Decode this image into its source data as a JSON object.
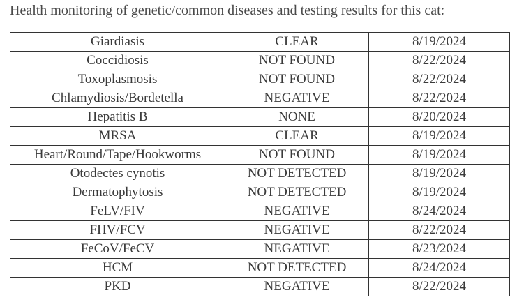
{
  "heading": "Health monitoring of genetic/common diseases and testing results for this cat:",
  "table": {
    "rows": [
      [
        "Giardiasis",
        "CLEAR",
        "8/19/2024"
      ],
      [
        "Coccidiosis",
        "NOT FOUND",
        "8/22/2024"
      ],
      [
        "Toxoplasmosis",
        "NOT FOUND",
        "8/22/2024"
      ],
      [
        "Chlamydiosis/Bordetella",
        "NEGATIVE",
        "8/22/2024"
      ],
      [
        "Hepatitis B",
        "NONE",
        "8/20/2024"
      ],
      [
        "MRSA",
        "CLEAR",
        "8/19/2024"
      ],
      [
        "Heart/Round/Tape/Hookworms",
        "NOT FOUND",
        "8/19/2024"
      ],
      [
        "Otodectes cynotis",
        "NOT DETECTED",
        "8/19/2024"
      ],
      [
        "Dermatophytosis",
        "NOT DETECTED",
        "8/19/2024"
      ],
      [
        "FeLV/FIV",
        "NEGATIVE",
        "8/24/2024"
      ],
      [
        "FHV/FCV",
        "NEGATIVE",
        "8/22/2024"
      ],
      [
        "FeCoV/FeCV",
        "NEGATIVE",
        "8/23/2024"
      ],
      [
        "HCM",
        "NOT DETECTED",
        "8/24/2024"
      ],
      [
        "PKD",
        "NEGATIVE",
        "8/22/2024"
      ]
    ]
  }
}
